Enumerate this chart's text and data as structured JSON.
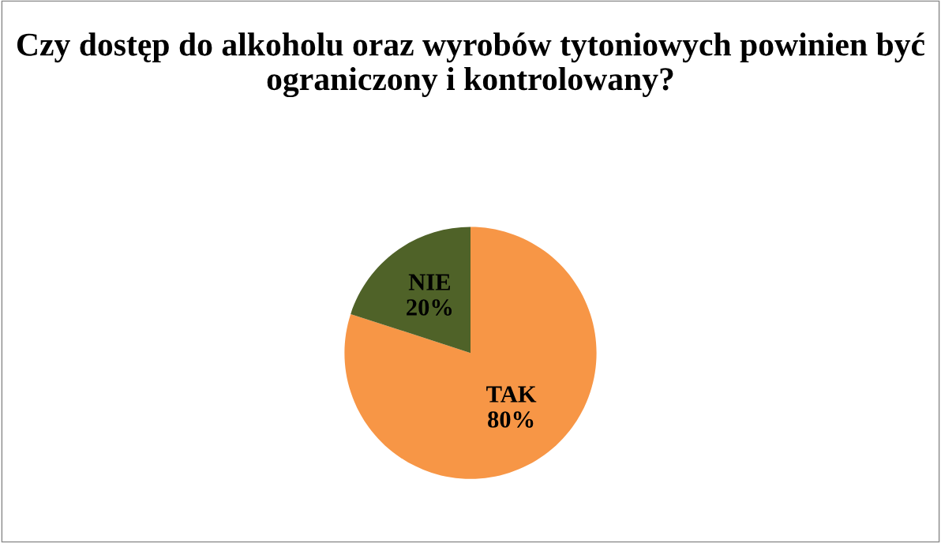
{
  "chart_data": {
    "type": "pie",
    "title": "Czy dostęp do alkoholu oraz wyrobów tytoniowych powinien być ograniczony i kontrolowany?",
    "categories": [
      "TAK",
      "NIE"
    ],
    "values": [
      80,
      20
    ],
    "colors": [
      "#f79646",
      "#4f6228"
    ],
    "value_labels": [
      "80%",
      "20%"
    ],
    "legend": false
  }
}
